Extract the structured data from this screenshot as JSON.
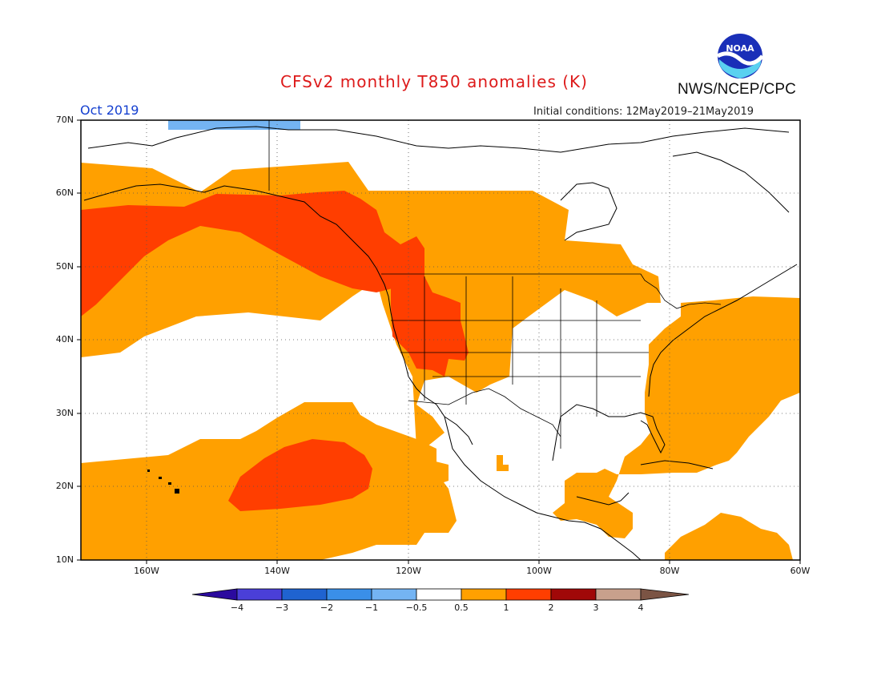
{
  "header": {
    "title": "CFSv2 monthly T850 anomalies (K)",
    "agency": "NWS/NCEP/CPC",
    "logo_text": "NOAA",
    "month": "Oct 2019",
    "initial_conditions": "Initial conditions: 12May2019–21May2019"
  },
  "map": {
    "projection": "cylindrical",
    "lon_range": [
      -170,
      -60
    ],
    "lat_range": [
      10,
      70
    ],
    "grid": true,
    "lat_ticks": [
      "10N",
      "20N",
      "30N",
      "40N",
      "50N",
      "60N",
      "70N"
    ],
    "lon_ticks": [
      "160W",
      "140W",
      "120W",
      "100W",
      "80W",
      "60W"
    ],
    "fill_colors": {
      "light_blue": "#74b4f3",
      "orange": "#ffa000",
      "red_orange": "#ff3e00"
    }
  },
  "colorbar": {
    "labels": [
      "−4",
      "−3",
      "−2",
      "−1",
      "−0.5",
      "0.5",
      "1",
      "2",
      "3",
      "4"
    ],
    "colors": [
      "#2b0a9e",
      "#4a3fd8",
      "#1f63d0",
      "#3a8fe8",
      "#74b4f3",
      "#ffffff",
      "#ffa000",
      "#ff3e00",
      "#a00808",
      "#c8a08c",
      "#7b5444"
    ]
  }
}
